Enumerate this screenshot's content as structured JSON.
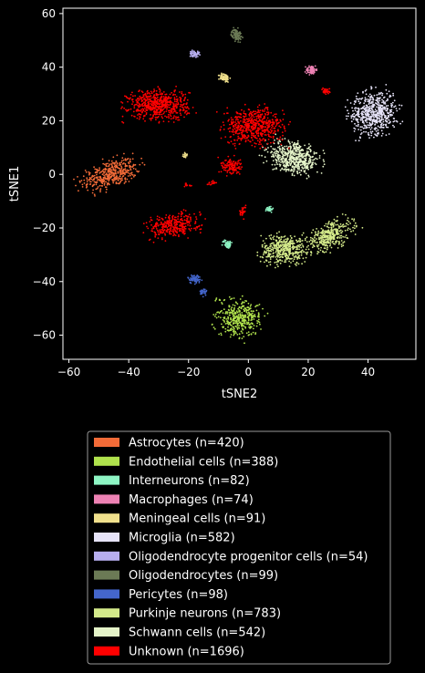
{
  "chart_data": {
    "type": "scatter",
    "title": "",
    "xlabel": "tSNE2",
    "ylabel": "tSNE1",
    "xlim": [
      -62,
      56
    ],
    "ylim": [
      -69,
      62
    ],
    "xticks": [
      -60,
      -40,
      -20,
      0,
      20,
      40
    ],
    "yticks": [
      -60,
      -40,
      -20,
      0,
      20,
      40,
      60
    ],
    "grid": false,
    "legend_position": "below",
    "series": [
      {
        "name": "Astrocytes (n=420)",
        "color": "#f26b38",
        "n": 420,
        "clusters": [
          {
            "cx": -46,
            "cy": 0,
            "rx": 9,
            "ry": 4.5,
            "n": 420,
            "rot": 20
          }
        ]
      },
      {
        "name": "Endothelial cells (n=388)",
        "color": "#b0e24d",
        "n": 388,
        "clusters": [
          {
            "cx": -3,
            "cy": -54,
            "rx": 6,
            "ry": 6,
            "n": 380,
            "rot": -30
          },
          {
            "cx": -10,
            "cy": -47,
            "rx": 1.5,
            "ry": 1,
            "n": 8,
            "rot": 0
          }
        ]
      },
      {
        "name": "Interneurons (n=82)",
        "color": "#8ef5c4",
        "n": 82,
        "clusters": [
          {
            "cx": -7,
            "cy": -26,
            "rx": 1.5,
            "ry": 1.5,
            "n": 50,
            "rot": 0
          },
          {
            "cx": 7,
            "cy": -13,
            "rx": 1,
            "ry": 1,
            "n": 32,
            "rot": 0
          }
        ]
      },
      {
        "name": "Macrophages (n=74)",
        "color": "#ee82b4",
        "n": 74,
        "clusters": [
          {
            "cx": 21,
            "cy": 39,
            "rx": 1.5,
            "ry": 1.5,
            "n": 74,
            "rot": 0
          }
        ]
      },
      {
        "name": "Meningeal cells (n=91)",
        "color": "#f0e08c",
        "n": 91,
        "clusters": [
          {
            "cx": -8,
            "cy": 36,
            "rx": 1.5,
            "ry": 1.5,
            "n": 75,
            "rot": 0
          },
          {
            "cx": -21,
            "cy": 7,
            "rx": 1,
            "ry": 1,
            "n": 16,
            "rot": 0
          }
        ]
      },
      {
        "name": "Microglia (n=582)",
        "color": "#e6e3f8",
        "n": 582,
        "clusters": [
          {
            "cx": 42,
            "cy": 23,
            "rx": 7,
            "ry": 7,
            "n": 582,
            "rot": 10
          }
        ]
      },
      {
        "name": "Oligodendrocyte progenitor cells (n=54)",
        "color": "#b7aeef",
        "n": 54,
        "clusters": [
          {
            "cx": -18,
            "cy": 45,
            "rx": 1.5,
            "ry": 1,
            "n": 54,
            "rot": 0
          }
        ]
      },
      {
        "name": "Oligodendrocytes (n=99)",
        "color": "#6b7a55",
        "n": 99,
        "clusters": [
          {
            "cx": -4,
            "cy": 52,
            "rx": 1.5,
            "ry": 2,
            "n": 99,
            "rot": 0
          }
        ]
      },
      {
        "name": "Pericytes (n=98)",
        "color": "#4466cc",
        "n": 98,
        "clusters": [
          {
            "cx": -18,
            "cy": -39,
            "rx": 2,
            "ry": 1.5,
            "n": 68,
            "rot": 0
          },
          {
            "cx": -15,
            "cy": -44,
            "rx": 1,
            "ry": 1.5,
            "n": 30,
            "rot": 0
          }
        ]
      },
      {
        "name": "Purkinje neurons (n=783)",
        "color": "#d4ea8a",
        "n": 783,
        "clusters": [
          {
            "cx": 12,
            "cy": -28,
            "rx": 7,
            "ry": 5,
            "n": 420,
            "rot": 0
          },
          {
            "cx": 27,
            "cy": -23,
            "rx": 8,
            "ry": 4,
            "n": 363,
            "rot": 30
          }
        ]
      },
      {
        "name": "Schwann cells (n=542)",
        "color": "#e4f3c8",
        "n": 542,
        "clusters": [
          {
            "cx": 15,
            "cy": 6,
            "rx": 8,
            "ry": 5,
            "n": 542,
            "rot": -20
          }
        ]
      },
      {
        "name": "Unknown (n=1696)",
        "color": "#ff0000",
        "n": 1696,
        "clusters": [
          {
            "cx": -30,
            "cy": 26,
            "rx": 9,
            "ry": 5,
            "n": 600,
            "rot": 0
          },
          {
            "cx": 2,
            "cy": 18,
            "rx": 9,
            "ry": 6,
            "n": 560,
            "rot": 0
          },
          {
            "cx": -25,
            "cy": -19,
            "rx": 8,
            "ry": 4,
            "n": 320,
            "rot": 10
          },
          {
            "cx": -6,
            "cy": 3,
            "rx": 3,
            "ry": 3,
            "n": 120,
            "rot": 0
          },
          {
            "cx": -20,
            "cy": -4,
            "rx": 1,
            "ry": 0.5,
            "n": 12,
            "rot": 0
          },
          {
            "cx": -12,
            "cy": -3,
            "rx": 1.5,
            "ry": 0.8,
            "n": 18,
            "rot": 0
          },
          {
            "cx": -2,
            "cy": -14,
            "rx": 1,
            "ry": 2,
            "n": 30,
            "rot": 0
          },
          {
            "cx": 26,
            "cy": 31,
            "rx": 1.2,
            "ry": 1,
            "n": 36,
            "rot": 0
          }
        ]
      }
    ]
  }
}
